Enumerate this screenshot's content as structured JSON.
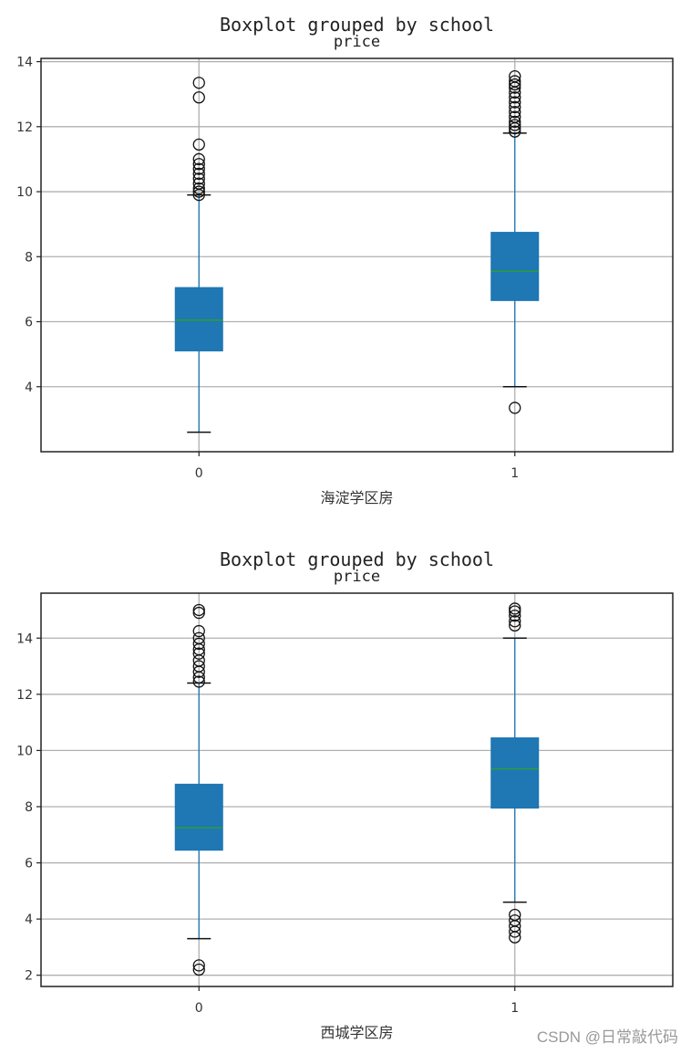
{
  "watermark": "CSDN @日常敲代码",
  "colors": {
    "box": "#1f77b4",
    "median": "#2ca02c",
    "whisker": "#1f77b4",
    "grid": "#b0b0b0"
  },
  "chart_data": [
    {
      "type": "box",
      "title": "Boxplot grouped by school",
      "subtitle": "price",
      "xlabel": "海淀学区房",
      "ylabel": "",
      "categories": [
        "0",
        "1"
      ],
      "yticks": [
        4,
        6,
        8,
        10,
        12,
        14
      ],
      "ylim": [
        2.0,
        14.1
      ],
      "grid": true,
      "boxes": [
        {
          "category": "0",
          "whislo": 2.6,
          "q1": 5.1,
          "med": 6.05,
          "q3": 7.05,
          "whishi": 9.9,
          "fliers": [
            9.9,
            10.0,
            10.1,
            10.25,
            10.4,
            10.55,
            10.7,
            10.85,
            11.0,
            11.45,
            12.9,
            13.35
          ]
        },
        {
          "category": "1",
          "whislo": 4.0,
          "q1": 6.65,
          "med": 7.55,
          "q3": 8.75,
          "whishi": 11.8,
          "fliers": [
            3.35,
            11.85,
            11.95,
            12.05,
            12.15,
            12.3,
            12.45,
            12.6,
            12.75,
            12.9,
            13.05,
            13.2,
            13.3,
            13.4,
            13.55
          ]
        }
      ]
    },
    {
      "type": "box",
      "title": "Boxplot grouped by school",
      "subtitle": "price",
      "xlabel": "西城学区房",
      "ylabel": "",
      "categories": [
        "0",
        "1"
      ],
      "yticks": [
        2,
        4,
        6,
        8,
        10,
        12,
        14
      ],
      "ylim": [
        1.6,
        15.6
      ],
      "grid": true,
      "boxes": [
        {
          "category": "0",
          "whislo": 3.3,
          "q1": 6.45,
          "med": 7.25,
          "q3": 8.8,
          "whishi": 12.4,
          "fliers": [
            2.2,
            2.35,
            12.45,
            12.6,
            12.8,
            13.0,
            13.2,
            13.45,
            13.6,
            13.8,
            14.0,
            14.25,
            14.9,
            15.0
          ]
        },
        {
          "category": "1",
          "whislo": 4.6,
          "q1": 7.95,
          "med": 9.35,
          "q3": 10.45,
          "whishi": 14.0,
          "fliers": [
            3.35,
            3.55,
            3.75,
            3.95,
            4.15,
            14.45,
            14.6,
            14.8,
            14.95,
            15.05
          ]
        }
      ]
    }
  ]
}
